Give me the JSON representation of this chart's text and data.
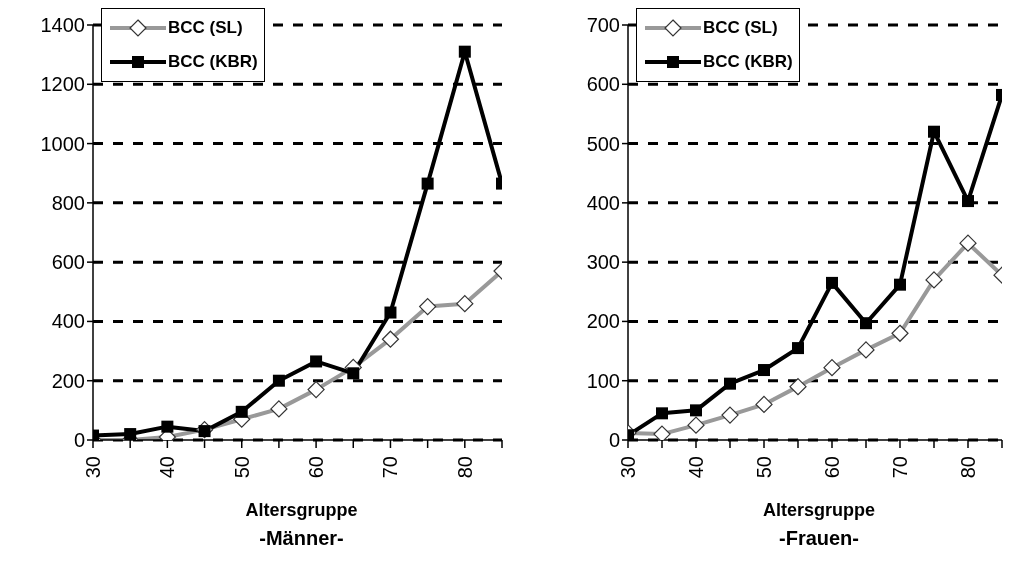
{
  "chart_data": [
    {
      "type": "line",
      "title": "-Männer-",
      "xlabel": "Altersgruppe",
      "x": [
        30,
        35,
        40,
        45,
        50,
        55,
        60,
        65,
        70,
        75,
        80,
        85
      ],
      "xlim": [
        30,
        85
      ],
      "xticks": [
        30,
        {
          "value": 35,
          "label": null
        },
        40,
        {
          "value": 45,
          "label": null
        },
        50,
        {
          "value": 55,
          "label": null
        },
        60,
        {
          "value": 65,
          "label": null
        },
        70,
        {
          "value": 75,
          "label": null
        },
        80,
        {
          "value": 85,
          "label": null
        }
      ],
      "ylim": [
        0,
        1400
      ],
      "yticks": [
        0,
        200,
        400,
        600,
        800,
        1000,
        1200,
        1400
      ],
      "grid": "y",
      "legend": "top left",
      "line_style": "solid",
      "series": [
        {
          "name": "BCC (SL)",
          "color": "#999999",
          "marker": "diamond",
          "values": [
            0,
            0,
            10,
            35,
            70,
            105,
            170,
            245,
            340,
            450,
            460,
            570
          ]
        },
        {
          "name": "BCC (KBR)",
          "color": "#000000",
          "marker": "square",
          "values": [
            15,
            20,
            45,
            30,
            95,
            200,
            265,
            225,
            430,
            865,
            1310,
            865
          ]
        }
      ]
    },
    {
      "type": "line",
      "title": "-Frauen-",
      "xlabel": "Altersgruppe",
      "x": [
        30,
        35,
        40,
        45,
        50,
        55,
        60,
        65,
        70,
        75,
        80,
        85
      ],
      "xlim": [
        30,
        85
      ],
      "xticks": [
        30,
        {
          "value": 35,
          "label": null
        },
        40,
        {
          "value": 45,
          "label": null
        },
        50,
        {
          "value": 55,
          "label": null
        },
        60,
        {
          "value": 65,
          "label": null
        },
        70,
        {
          "value": 75,
          "label": null
        },
        80,
        {
          "value": 85,
          "label": null
        }
      ],
      "ylim": [
        0,
        700
      ],
      "yticks": [
        0,
        100,
        200,
        300,
        400,
        500,
        600,
        700
      ],
      "grid": "y",
      "legend": "top left",
      "line_style": "solid",
      "series": [
        {
          "name": "BCC (SL)",
          "color": "#999999",
          "marker": "diamond",
          "values": [
            12,
            10,
            25,
            42,
            60,
            90,
            122,
            152,
            180,
            270,
            332,
            278
          ]
        },
        {
          "name": "BCC (KBR)",
          "color": "#000000",
          "marker": "square",
          "values": [
            8,
            45,
            50,
            95,
            118,
            155,
            265,
            197,
            262,
            520,
            403,
            582
          ]
        }
      ]
    }
  ]
}
